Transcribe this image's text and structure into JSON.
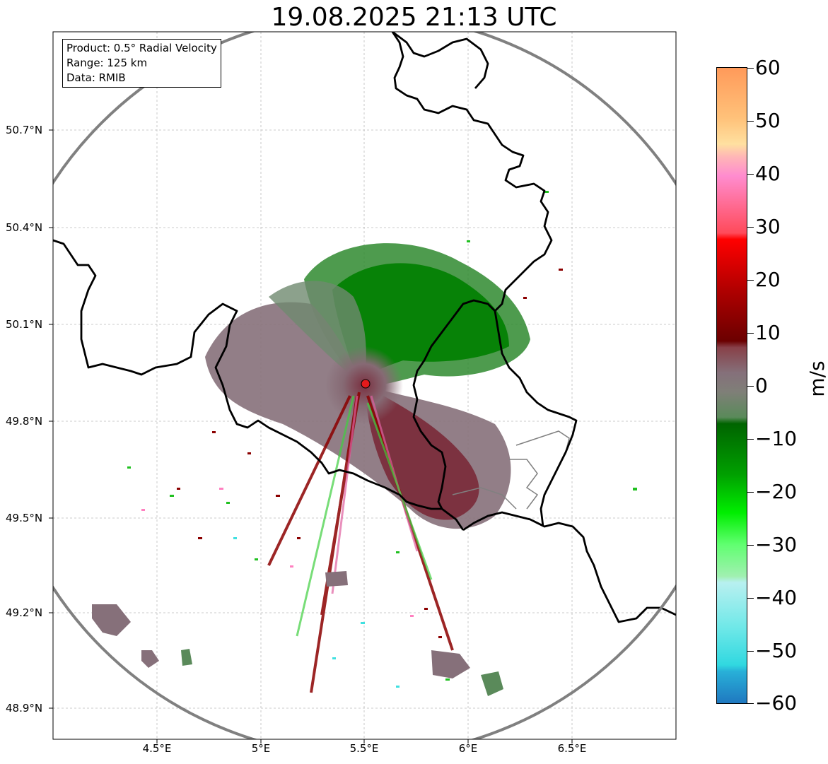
{
  "title": "19.08.2025 21:13 UTC",
  "info": {
    "product": "Product: 0.5° Radial Velocity",
    "range": "Range: 125 km",
    "source": "Data: RMIB"
  },
  "lat_ticks": [
    "50.7°N",
    "50.4°N",
    "50.1°N",
    "49.8°N",
    "49.5°N",
    "49.2°N",
    "48.9°N"
  ],
  "lon_ticks": [
    "4.5°E",
    "5°E",
    "5.5°E",
    "6°E",
    "6.5°E"
  ],
  "colorbar": {
    "unit": "m/s",
    "ticks": [
      "60",
      "50",
      "40",
      "30",
      "20",
      "10",
      "0",
      "−10",
      "−20",
      "−30",
      "−40",
      "−50",
      "−60"
    ]
  },
  "colors": {
    "range_ring": "#808080",
    "border": "#000000",
    "radar_site": "#e41a1c",
    "receding": "#8b0000",
    "approaching": "#008000",
    "near_zero": "#85707a"
  }
}
